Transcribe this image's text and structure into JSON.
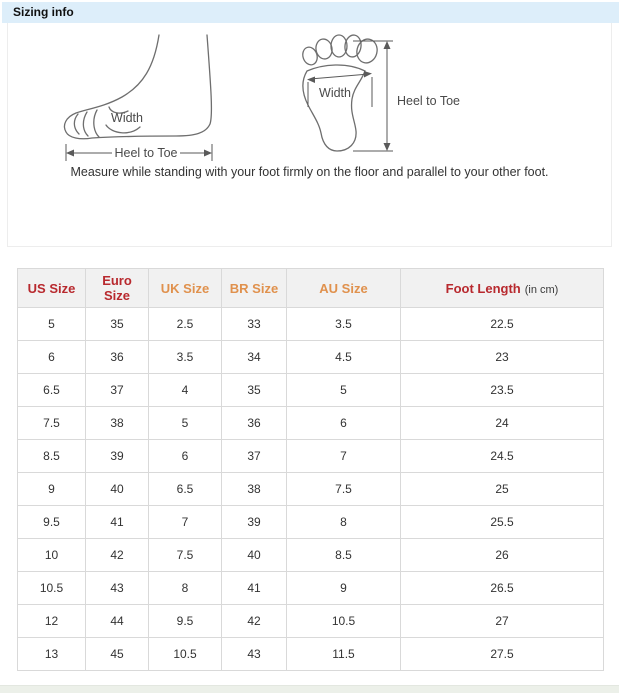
{
  "page": {
    "title": "Sizing info",
    "note": "Measure while standing with your foot firmly on the floor and parallel to your other foot."
  },
  "diagrams": {
    "side_view": {
      "width_label": "Width",
      "length_label": "Heel to Toe"
    },
    "bottom_view": {
      "width_label": "Width",
      "length_label": "Heel to Toe"
    }
  },
  "size_table": {
    "columns": [
      {
        "label": "US Size",
        "color": "#b8292e"
      },
      {
        "label": "Euro Size",
        "color": "#b8292e"
      },
      {
        "label": "UK Size",
        "color": "#e0914d"
      },
      {
        "label": "BR Size",
        "color": "#e0914d"
      },
      {
        "label": "AU Size",
        "color": "#e0914d"
      },
      {
        "label": "Foot Length",
        "color": "#b8292e",
        "suffix": "(in cm)"
      }
    ],
    "rows": [
      [
        "5",
        "35",
        "2.5",
        "33",
        "3.5",
        "22.5"
      ],
      [
        "6",
        "36",
        "3.5",
        "34",
        "4.5",
        "23"
      ],
      [
        "6.5",
        "37",
        "4",
        "35",
        "5",
        "23.5"
      ],
      [
        "7.5",
        "38",
        "5",
        "36",
        "6",
        "24"
      ],
      [
        "8.5",
        "39",
        "6",
        "37",
        "7",
        "24.5"
      ],
      [
        "9",
        "40",
        "6.5",
        "38",
        "7.5",
        "25"
      ],
      [
        "9.5",
        "41",
        "7",
        "39",
        "8",
        "25.5"
      ],
      [
        "10",
        "42",
        "7.5",
        "40",
        "8.5",
        "26"
      ],
      [
        "10.5",
        "43",
        "8",
        "41",
        "9",
        "26.5"
      ],
      [
        "12",
        "44",
        "9.5",
        "42",
        "10.5",
        "27"
      ],
      [
        "13",
        "45",
        "10.5",
        "43",
        "11.5",
        "27.5"
      ]
    ]
  },
  "colors": {
    "header_bar_bg": "#ddeefa",
    "primary_header_text": "#b8292e",
    "secondary_header_text": "#e0914d",
    "table_border": "#d9d9d9",
    "header_row_bg": "#f1f1f1",
    "footer_strip": "#ecf0e9"
  }
}
